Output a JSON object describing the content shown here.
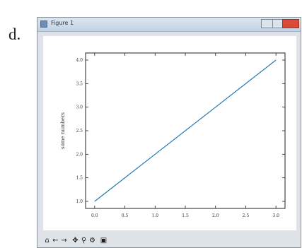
{
  "panel_label": "d.",
  "window": {
    "title": "Figure 1"
  },
  "toolbar": {
    "buttons": [
      {
        "name": "home-icon",
        "glyph": "⌂"
      },
      {
        "name": "back-icon",
        "glyph": "←"
      },
      {
        "name": "forward-icon",
        "glyph": "→"
      },
      {
        "name": "pan-icon",
        "glyph": "✥"
      },
      {
        "name": "zoom-icon",
        "glyph": "⚲"
      },
      {
        "name": "configure-icon",
        "glyph": "⚙"
      },
      {
        "name": "save-icon",
        "glyph": "▣"
      }
    ]
  },
  "chart_data": {
    "type": "line",
    "title": "",
    "xlabel": "",
    "ylabel": "some numbers",
    "x_ticks": [
      "0.0",
      "0.5",
      "1.0",
      "1.5",
      "2.0",
      "2.5",
      "3.0"
    ],
    "y_ticks": [
      "1.0",
      "1.5",
      "2.0",
      "2.5",
      "3.0",
      "3.5",
      "4.0"
    ],
    "xlim": [
      -0.15,
      3.15
    ],
    "ylim": [
      0.85,
      4.15
    ],
    "grid": false,
    "line_color": "#1f77b4",
    "series": [
      {
        "x": [
          0,
          1,
          2,
          3
        ],
        "y": [
          1,
          2,
          3,
          4
        ]
      }
    ]
  }
}
